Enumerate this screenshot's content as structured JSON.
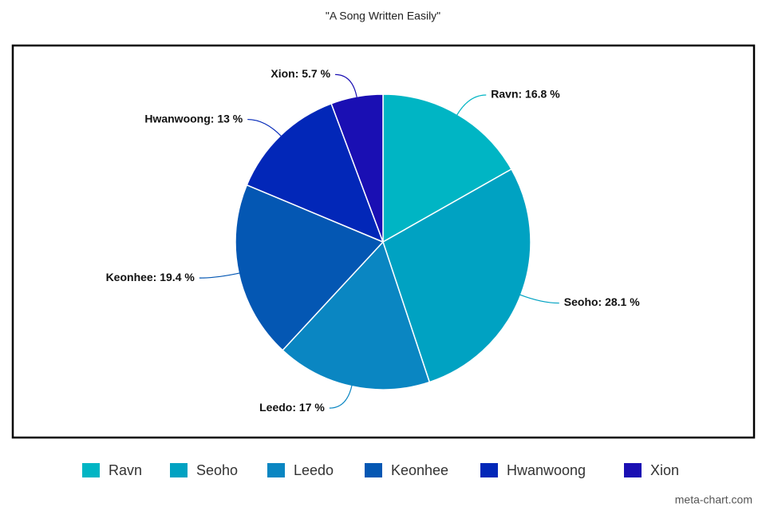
{
  "chart_data": {
    "type": "pie",
    "title": "\"A Song Written Easily\"",
    "categories": [
      "Ravn",
      "Seoho",
      "Leedo",
      "Keonhee",
      "Hwanwoong",
      "Xion"
    ],
    "values": [
      16.8,
      28.1,
      17,
      19.4,
      13,
      5.7
    ],
    "value_labels": [
      "Ravn: 16.8 %",
      "Seoho: 28.1 %",
      "Leedo: 17 %",
      "Keonhee: 19.4 %",
      "Hwanwoong: 13 %",
      "Xion: 5.7 %"
    ],
    "colors": [
      "#00b5c4",
      "#00a2c2",
      "#0a86c2",
      "#0457b3",
      "#0227b8",
      "#1a0fb3"
    ],
    "legend": "bottom",
    "credit": "meta-chart.com"
  }
}
